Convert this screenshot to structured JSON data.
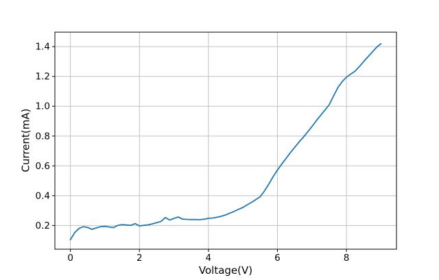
{
  "chart_data": {
    "type": "line",
    "title": "",
    "xlabel": "Voltage(V)",
    "ylabel": "Current(mA)",
    "xlim": [
      -0.45,
      9.45
    ],
    "ylim": [
      0.041,
      1.497
    ],
    "xticks": [
      0,
      2,
      4,
      6,
      8
    ],
    "xtick_labels": [
      "0",
      "2",
      "4",
      "6",
      "8"
    ],
    "yticks": [
      0.2,
      0.4,
      0.6,
      0.8,
      1.0,
      1.2,
      1.4
    ],
    "ytick_labels": [
      "0.2",
      "0.4",
      "0.6",
      "0.8",
      "1.0",
      "1.2",
      "1.4"
    ],
    "grid": true,
    "legend": false,
    "line_color": "#1f77b4",
    "grid_color": "#c0c0c0",
    "spine_color": "#000000",
    "background_color": "#ffffff",
    "series": [
      {
        "x": [
          0,
          0.125,
          0.25,
          0.375,
          0.5,
          0.625,
          0.75,
          0.875,
          1,
          1.125,
          1.25,
          1.375,
          1.5,
          1.625,
          1.75,
          1.875,
          2,
          2.125,
          2.25,
          2.375,
          2.5,
          2.625,
          2.75,
          2.875,
          3,
          3.125,
          3.25,
          3.375,
          3.5,
          3.625,
          3.75,
          3.875,
          4,
          4.125,
          4.25,
          4.375,
          4.5,
          4.625,
          4.75,
          4.875,
          5,
          5.125,
          5.25,
          5.375,
          5.5,
          5.625,
          5.75,
          5.875,
          6,
          6.125,
          6.25,
          6.375,
          6.5,
          6.625,
          6.75,
          6.875,
          7,
          7.125,
          7.25,
          7.375,
          7.5,
          7.625,
          7.75,
          7.875,
          8,
          8.125,
          8.25,
          8.375,
          8.5,
          8.625,
          8.75,
          8.875,
          9
        ],
        "y": [
          0.105,
          0.152,
          0.18,
          0.192,
          0.187,
          0.174,
          0.184,
          0.192,
          0.194,
          0.19,
          0.186,
          0.201,
          0.206,
          0.203,
          0.201,
          0.213,
          0.197,
          0.201,
          0.204,
          0.211,
          0.219,
          0.227,
          0.253,
          0.237,
          0.247,
          0.257,
          0.243,
          0.241,
          0.24,
          0.24,
          0.239,
          0.242,
          0.248,
          0.25,
          0.255,
          0.262,
          0.271,
          0.283,
          0.295,
          0.309,
          0.321,
          0.339,
          0.355,
          0.374,
          0.393,
          0.432,
          0.478,
          0.528,
          0.572,
          0.612,
          0.65,
          0.688,
          0.724,
          0.76,
          0.792,
          0.828,
          0.864,
          0.902,
          0.938,
          0.974,
          1.01,
          1.068,
          1.125,
          1.165,
          1.195,
          1.216,
          1.235,
          1.266,
          1.3,
          1.332,
          1.364,
          1.396,
          1.42
        ]
      }
    ]
  }
}
